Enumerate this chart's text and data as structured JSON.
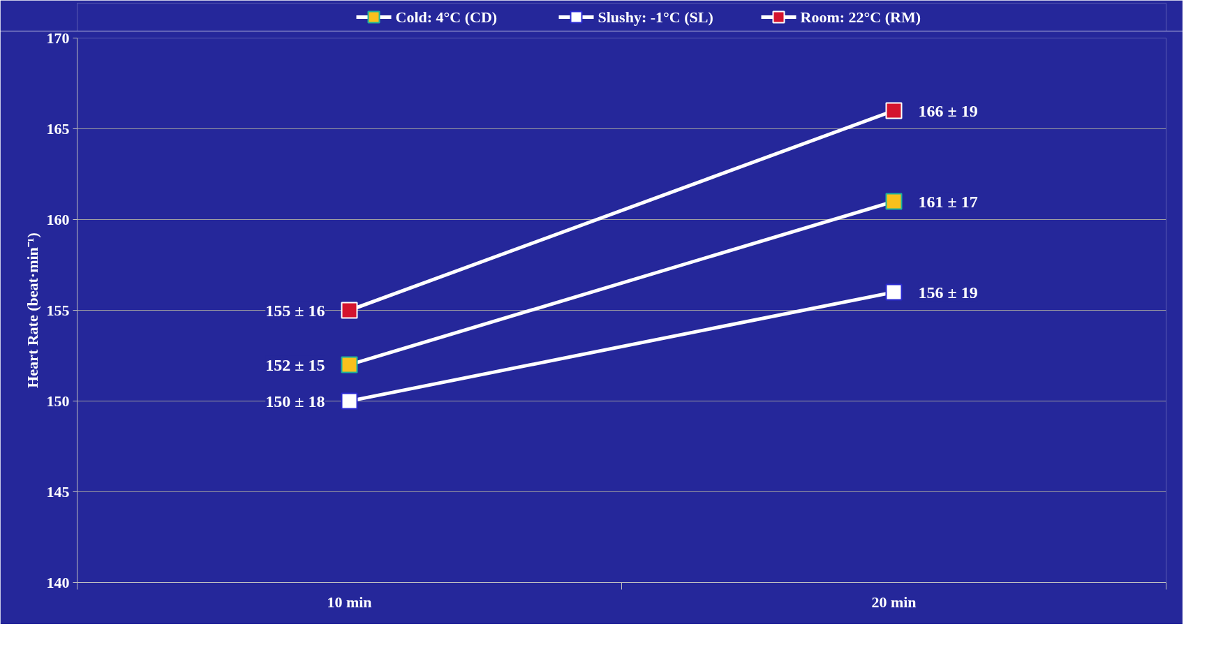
{
  "chart_data": {
    "type": "line",
    "ylabel": "Heart Rate (beat·min⁻¹)",
    "categories": [
      "10 min",
      "20 min"
    ],
    "series": [
      {
        "name": "Cold: 4°C (CD)",
        "color": "#f9c01c",
        "values": [
          152,
          161
        ],
        "value_labels": [
          "152 ± 15",
          "161 ± 17"
        ]
      },
      {
        "name": "Slushy: -1°C (SL)",
        "color": "#ffffff",
        "values": [
          150,
          156
        ],
        "value_labels": [
          "150 ± 18",
          "156 ± 19"
        ]
      },
      {
        "name": "Room: 22°C (RM)",
        "color": "#d4142e",
        "values": [
          155,
          166
        ],
        "value_labels": [
          "155 ± 16",
          "166 ± 19"
        ]
      }
    ],
    "ylim": [
      140,
      170
    ],
    "yticks": [
      140,
      145,
      150,
      155,
      160,
      165,
      170
    ],
    "grid": "y",
    "legend": "top",
    "marker": "square",
    "line_style": "solid"
  }
}
